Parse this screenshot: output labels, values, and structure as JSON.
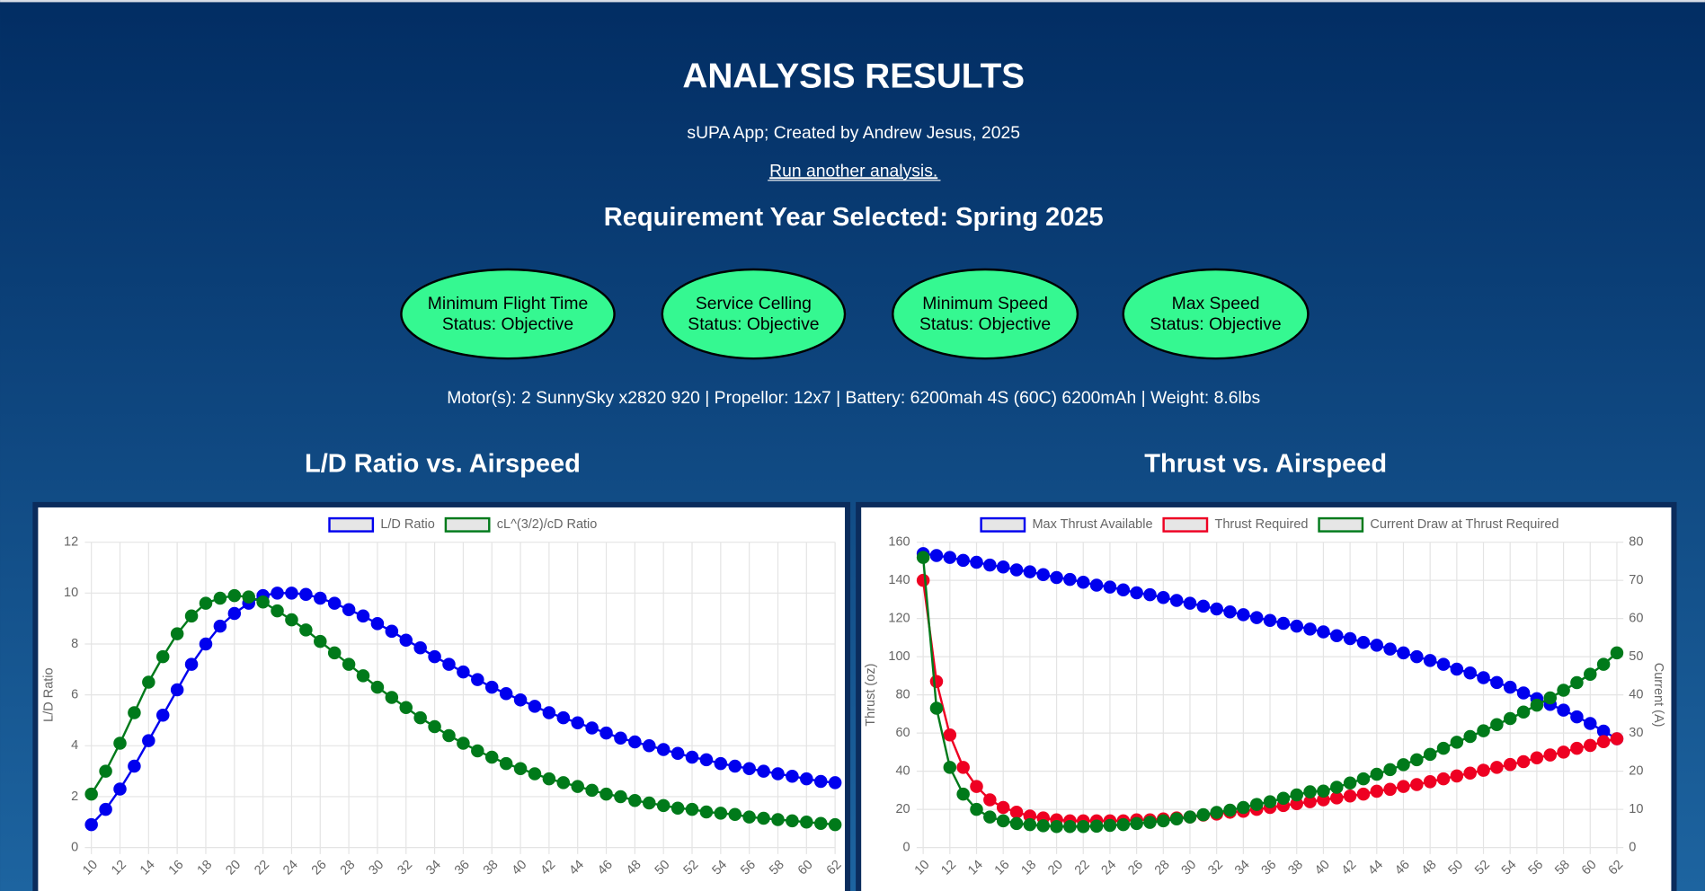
{
  "header": {
    "title": "ANALYSIS RESULTS",
    "subtitle": "sUPA App; Created by Andrew Jesus, 2025",
    "link": "Run another analysis.",
    "requirement": "Requirement Year Selected: Spring 2025"
  },
  "requirements": [
    {
      "name": "Minimum Flight Time",
      "status": "Status: Objective"
    },
    {
      "name": "Service Celling",
      "status": "Status: Objective"
    },
    {
      "name": "Minimum Speed",
      "status": "Status: Objective"
    },
    {
      "name": "Max Speed",
      "status": "Status: Objective"
    }
  ],
  "specs": "Motor(s): 2 SunnySky x2820 920 | Propellor: 12x7 | Battery: 6200mah 4S (60C) 6200mAh | Weight: 8.6lbs",
  "chart_data": [
    {
      "type": "line",
      "title": "L/D Ratio vs. Airspeed",
      "ylabel": "L/D Ratio",
      "x": [
        10,
        11,
        12,
        13,
        14,
        15,
        16,
        17,
        18,
        19,
        20,
        21,
        22,
        23,
        24,
        25,
        26,
        27,
        28,
        29,
        30,
        31,
        32,
        33,
        34,
        35,
        36,
        37,
        38,
        39,
        40,
        41,
        42,
        43,
        44,
        45,
        46,
        47,
        48,
        49,
        50,
        51,
        52,
        53,
        54,
        55,
        56,
        57,
        58,
        59,
        60,
        61,
        62
      ],
      "xlim": [
        10,
        62
      ],
      "xticks": [
        10,
        12,
        14,
        16,
        18,
        20,
        22,
        24,
        26,
        28,
        30,
        32,
        34,
        36,
        38,
        40,
        42,
        44,
        46,
        48,
        50,
        52,
        54,
        56,
        58,
        60,
        62
      ],
      "ylim": [
        0,
        12
      ],
      "yticks": [
        0,
        2,
        4,
        6,
        8,
        10,
        12
      ],
      "grid": true,
      "series": [
        {
          "name": "L/D Ratio",
          "color": "#0000ee",
          "values": [
            0.9,
            1.5,
            2.3,
            3.2,
            4.2,
            5.2,
            6.2,
            7.2,
            8.0,
            8.7,
            9.2,
            9.6,
            9.9,
            10.0,
            10.0,
            9.95,
            9.8,
            9.6,
            9.35,
            9.1,
            8.8,
            8.5,
            8.15,
            7.85,
            7.5,
            7.2,
            6.9,
            6.6,
            6.3,
            6.05,
            5.8,
            5.55,
            5.3,
            5.1,
            4.9,
            4.7,
            4.5,
            4.3,
            4.15,
            4.0,
            3.85,
            3.7,
            3.55,
            3.45,
            3.3,
            3.2,
            3.1,
            3.0,
            2.9,
            2.8,
            2.7,
            2.6,
            2.55
          ]
        },
        {
          "name": "cL^(3/2)/cD Ratio",
          "color": "#007a1a",
          "values": [
            2.1,
            3.0,
            4.1,
            5.3,
            6.5,
            7.5,
            8.4,
            9.1,
            9.6,
            9.8,
            9.9,
            9.85,
            9.65,
            9.3,
            8.95,
            8.55,
            8.1,
            7.65,
            7.2,
            6.75,
            6.3,
            5.9,
            5.5,
            5.1,
            4.75,
            4.4,
            4.1,
            3.8,
            3.55,
            3.3,
            3.1,
            2.9,
            2.7,
            2.55,
            2.4,
            2.25,
            2.1,
            2.0,
            1.85,
            1.75,
            1.65,
            1.55,
            1.5,
            1.4,
            1.35,
            1.3,
            1.2,
            1.15,
            1.1,
            1.05,
            1.0,
            0.95,
            0.9
          ]
        }
      ]
    },
    {
      "type": "line",
      "title": "Thrust vs. Airspeed",
      "ylabel": "Thrust (oz)",
      "y2label": "Current (A)",
      "x": [
        10,
        11,
        12,
        13,
        14,
        15,
        16,
        17,
        18,
        19,
        20,
        21,
        22,
        23,
        24,
        25,
        26,
        27,
        28,
        29,
        30,
        31,
        32,
        33,
        34,
        35,
        36,
        37,
        38,
        39,
        40,
        41,
        42,
        43,
        44,
        45,
        46,
        47,
        48,
        49,
        50,
        51,
        52,
        53,
        54,
        55,
        56,
        57,
        58,
        59,
        60,
        61,
        62
      ],
      "xlim": [
        10,
        62
      ],
      "xticks": [
        10,
        12,
        14,
        16,
        18,
        20,
        22,
        24,
        26,
        28,
        30,
        32,
        34,
        36,
        38,
        40,
        42,
        44,
        46,
        48,
        50,
        52,
        54,
        56,
        58,
        60,
        62
      ],
      "ylim": [
        0,
        160
      ],
      "yticks": [
        0,
        20,
        40,
        60,
        80,
        100,
        120,
        140,
        160
      ],
      "y2lim": [
        0,
        80
      ],
      "y2ticks": [
        0,
        10,
        20,
        30,
        40,
        50,
        60,
        70,
        80
      ],
      "grid": true,
      "series": [
        {
          "name": "Max Thrust Available",
          "color": "#0000ee",
          "values": [
            154,
            153,
            152,
            150.5,
            149.5,
            148,
            147,
            145.5,
            144.5,
            143,
            141.5,
            140.5,
            139,
            137.5,
            136.5,
            135,
            133.5,
            132.5,
            131,
            129.5,
            128,
            126.5,
            125,
            123.5,
            122,
            120.5,
            119,
            117.5,
            116,
            114.5,
            113,
            111,
            109.5,
            107.5,
            106,
            104,
            102,
            100,
            98,
            96,
            93.5,
            91.5,
            89,
            86.5,
            84,
            81,
            78,
            75,
            72,
            68.5,
            65,
            61,
            57
          ]
        },
        {
          "name": "Thrust Required",
          "color": "#ee0022",
          "values": [
            140,
            87,
            59,
            42,
            32,
            25,
            21,
            18.5,
            16.5,
            15.5,
            14.5,
            14,
            14,
            14,
            14,
            14,
            14.5,
            14.5,
            15,
            15.5,
            16,
            17,
            17.5,
            18.5,
            19,
            20,
            21,
            22,
            23,
            24,
            25,
            26,
            27,
            28,
            29.5,
            30.5,
            32,
            33,
            34.5,
            36,
            37.5,
            39,
            40.5,
            42,
            43.5,
            45,
            47,
            48.5,
            50,
            52,
            53.5,
            55.5,
            57
          ]
        },
        {
          "name": "Current Draw at Thrust Required",
          "color": "#007a1a",
          "axis": "y2",
          "values": [
            76,
            36.5,
            21,
            14,
            10,
            8,
            7,
            6.3,
            6,
            5.7,
            5.5,
            5.5,
            5.5,
            5.6,
            5.8,
            6,
            6.3,
            6.6,
            7,
            7.5,
            8,
            8.6,
            9.2,
            9.8,
            10.5,
            11.3,
            12,
            12.9,
            13.8,
            14.6,
            14.8,
            15.8,
            16.9,
            18,
            19.2,
            20.4,
            21.7,
            23,
            24.4,
            26,
            27.6,
            29.1,
            30.6,
            32.2,
            33.8,
            35.5,
            37.3,
            39.2,
            41.2,
            43.2,
            45.4,
            48,
            51
          ]
        }
      ]
    }
  ]
}
